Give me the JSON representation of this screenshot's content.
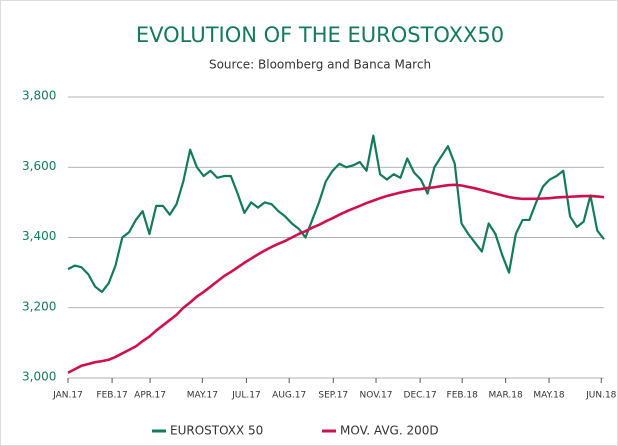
{
  "chart_data": {
    "type": "line",
    "title": "EVOLUTION OF THE EUROSTOXX50",
    "subtitle": "Source: Bloomberg and Banca March",
    "xlim": [
      0,
      79
    ],
    "xticks": [
      {
        "value": 0,
        "label": "JAN.17"
      },
      {
        "value": 6.5,
        "label": "FEB.17"
      },
      {
        "value": 12.1,
        "label": "APR.17"
      },
      {
        "value": 19.8,
        "label": "MAY.17"
      },
      {
        "value": 26.3,
        "label": "JUL.17"
      },
      {
        "value": 32.6,
        "label": "AUG.17"
      },
      {
        "value": 39.1,
        "label": "SEP.17"
      },
      {
        "value": 45.4,
        "label": "NOV.17"
      },
      {
        "value": 51.9,
        "label": "DEC.17"
      },
      {
        "value": 58.1,
        "label": "FEB.18"
      },
      {
        "value": 64.5,
        "label": "MAR.18"
      },
      {
        "value": 70.9,
        "label": "MAY.18"
      },
      {
        "value": 78.6,
        "label": "JUN.18"
      }
    ],
    "ylim": [
      3000,
      3800
    ],
    "yticks": [
      {
        "value": 3000,
        "label": "3,000"
      },
      {
        "value": 3200,
        "label": "3,200"
      },
      {
        "value": 3400,
        "label": "3,400"
      },
      {
        "value": 3600,
        "label": "3,600"
      },
      {
        "value": 3800,
        "label": "3,800"
      }
    ],
    "grid": true,
    "legend": "bottom",
    "series": [
      {
        "name": "EUROSTOXX 50",
        "color": "#137a5b",
        "values": [
          3310,
          3320,
          3315,
          3295,
          3260,
          3245,
          3270,
          3320,
          3400,
          3415,
          3450,
          3475,
          3410,
          3490,
          3490,
          3465,
          3495,
          3560,
          3650,
          3600,
          3575,
          3590,
          3570,
          3575,
          3575,
          3525,
          3470,
          3500,
          3485,
          3500,
          3495,
          3475,
          3460,
          3440,
          3425,
          3400,
          3450,
          3500,
          3560,
          3590,
          3610,
          3600,
          3605,
          3615,
          3590,
          3690,
          3580,
          3565,
          3580,
          3570,
          3625,
          3585,
          3565,
          3525,
          3600,
          3630,
          3660,
          3610,
          3440,
          3410,
          3385,
          3360,
          3440,
          3410,
          3350,
          3300,
          3410,
          3450,
          3450,
          3500,
          3545,
          3565,
          3575,
          3590,
          3460,
          3430,
          3445,
          3520,
          3420,
          3395
        ]
      },
      {
        "name": "MOV. AVG. 200D",
        "color": "#d0104c",
        "values": [
          3015,
          3025,
          3035,
          3040,
          3045,
          3048,
          3052,
          3060,
          3070,
          3080,
          3090,
          3105,
          3118,
          3135,
          3150,
          3165,
          3180,
          3200,
          3215,
          3232,
          3245,
          3260,
          3275,
          3290,
          3302,
          3315,
          3328,
          3340,
          3352,
          3363,
          3373,
          3382,
          3390,
          3400,
          3410,
          3418,
          3428,
          3436,
          3446,
          3455,
          3465,
          3474,
          3482,
          3490,
          3498,
          3505,
          3512,
          3518,
          3523,
          3528,
          3532,
          3536,
          3538,
          3541,
          3543,
          3546,
          3549,
          3550,
          3548,
          3544,
          3540,
          3535,
          3530,
          3525,
          3520,
          3515,
          3512,
          3510,
          3510,
          3510,
          3511,
          3512,
          3514,
          3515,
          3516,
          3517,
          3518,
          3518,
          3517,
          3515
        ]
      }
    ]
  }
}
